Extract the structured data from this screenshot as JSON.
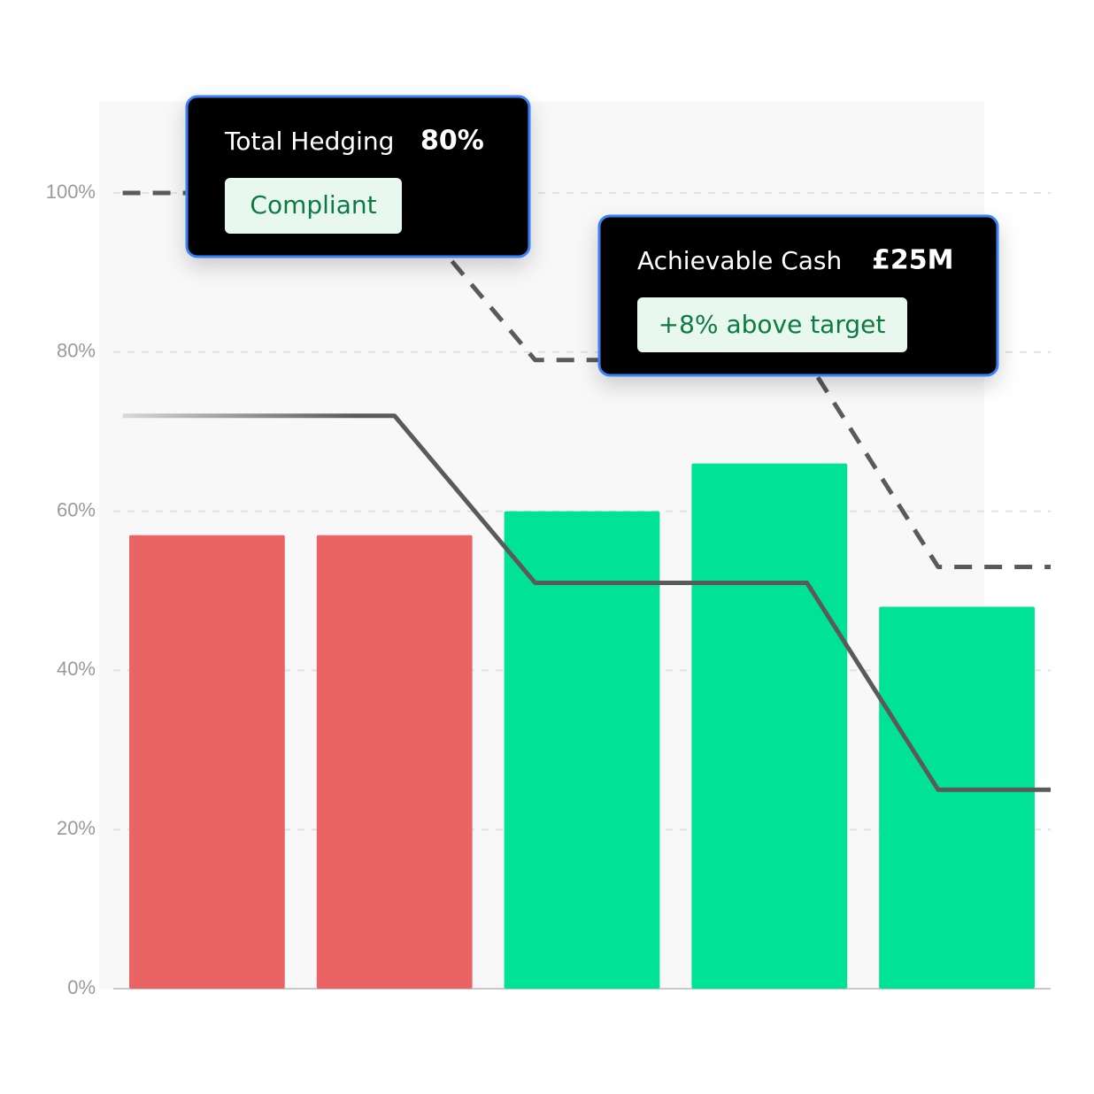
{
  "chart_data": {
    "type": "bar",
    "categories": [
      null,
      null,
      null,
      null,
      null
    ],
    "values": [
      57,
      57,
      60,
      66,
      48
    ],
    "colors": [
      "#ea6365",
      "#ea6365",
      "#00e396",
      "#00e396",
      "#00e396"
    ],
    "xlim": [
      0,
      5
    ],
    "lines": [
      {
        "x": [
          0.05,
          1.5,
          2.25,
          3.7,
          4.4,
          5
        ],
        "values": [
          100,
          100,
          79,
          79,
          53,
          53
        ],
        "color": "#5a5a5c",
        "dashed": true
      },
      {
        "x": [
          0.05,
          1.5,
          2.25,
          3.7,
          4.4,
          5
        ],
        "values": [
          72,
          72,
          51,
          51,
          25,
          25
        ],
        "color": "#5a5a5c",
        "dashed": false
      }
    ],
    "ylim": [
      0,
      100
    ],
    "yticks": [
      {
        "value": 0,
        "label": "0%"
      },
      {
        "value": 20,
        "label": "20%"
      },
      {
        "value": 40,
        "label": "40%"
      },
      {
        "value": 60,
        "label": "60%"
      },
      {
        "value": 80,
        "label": "80%"
      },
      {
        "value": 100,
        "label": "100%"
      }
    ],
    "grid": true,
    "annotations": [
      {
        "label": "Total Hedging",
        "value": "80%",
        "badge": "Compliant"
      },
      {
        "label": "Achievable Cash",
        "value": "£25M",
        "badge": "+8% above target"
      }
    ]
  }
}
